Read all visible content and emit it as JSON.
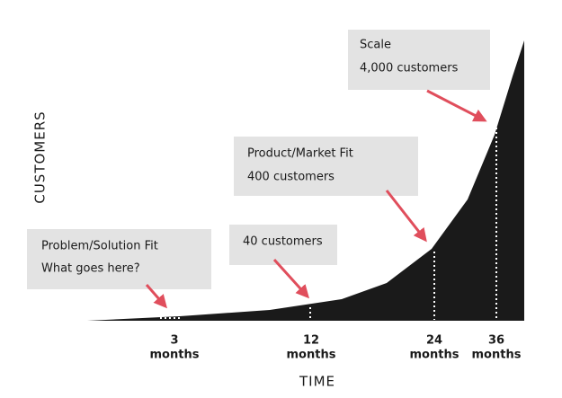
{
  "axes": {
    "y_label": "CUSTOMERS",
    "x_label": "TIME"
  },
  "callouts": [
    {
      "title": "Problem/Solution Fit",
      "subtitle": "What goes here?"
    },
    {
      "title": "40 customers"
    },
    {
      "title": "Product/Market Fit",
      "subtitle": "400 customers"
    },
    {
      "title": "Scale",
      "subtitle": "4,000 customers"
    }
  ],
  "milestones": [
    {
      "value": "3",
      "unit": "months"
    },
    {
      "value": "12",
      "unit": "months"
    },
    {
      "value": "24",
      "unit": "months"
    },
    {
      "value": "36",
      "unit": "months"
    }
  ]
}
